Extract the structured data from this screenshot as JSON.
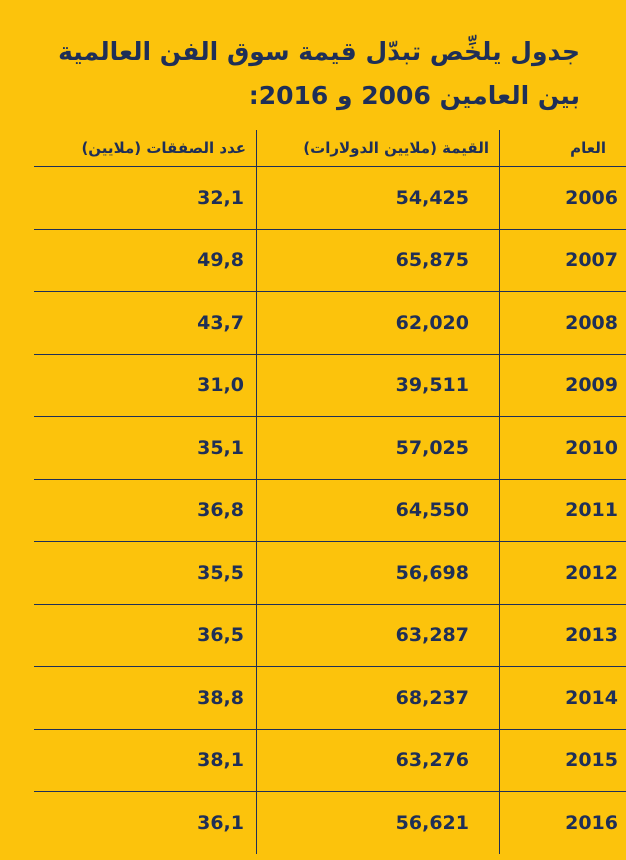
{
  "title": "جدول يلخِّص تبدّل قيمة سوق الفن العالمية بين العامين 2006 و 2016:",
  "chart_data": {
    "type": "table",
    "title": "جدول يلخِّص تبدّل قيمة سوق الفن العالمية بين العامين 2006 و 2016:",
    "columns": [
      "العام",
      "القيمة (ملايين الدولارات)",
      "عدد الصفقات (ملايين)"
    ],
    "rows": [
      {
        "year": "2006",
        "value": "54,425",
        "count": "32,1"
      },
      {
        "year": "2007",
        "value": "65,875",
        "count": "49,8"
      },
      {
        "year": "2008",
        "value": "62,020",
        "count": "43,7"
      },
      {
        "year": "2009",
        "value": "39,511",
        "count": "31,0"
      },
      {
        "year": "2010",
        "value": "57,025",
        "count": "35,1"
      },
      {
        "year": "2011",
        "value": "64,550",
        "count": "36,8"
      },
      {
        "year": "2012",
        "value": "56,698",
        "count": "35,5"
      },
      {
        "year": "2013",
        "value": "63,287",
        "count": "36,5"
      },
      {
        "year": "2014",
        "value": "68,237",
        "count": "38,8"
      },
      {
        "year": "2015",
        "value": "63,276",
        "count": "38,1"
      },
      {
        "year": "2016",
        "value": "56,621",
        "count": "36,1"
      }
    ]
  }
}
